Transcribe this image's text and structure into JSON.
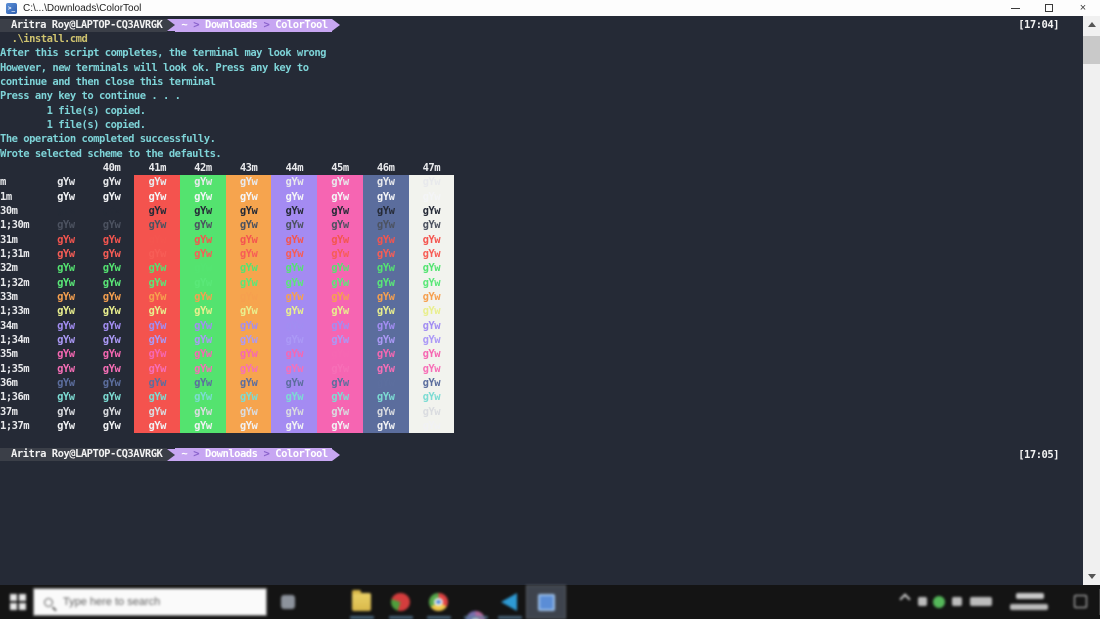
{
  "window": {
    "title": "C:\\...\\Downloads\\ColorTool",
    "controls": {
      "minimize": "minimize",
      "maximize": "maximize",
      "close": "×"
    }
  },
  "terminal": {
    "background": "#252a36",
    "path_separator": ">",
    "prompt_top": {
      "user": "Aritra Roy@LAPTOP-CQ3AVRGK",
      "segments": [
        "~",
        "Downloads",
        "ColorTool"
      ],
      "time": "[17:04]"
    },
    "prompt_bottom": {
      "user": "Aritra Roy@LAPTOP-CQ3AVRGK",
      "segments": [
        "~",
        "Downloads",
        "ColorTool"
      ],
      "time": "[17:05]"
    },
    "lines": [
      {
        "text": "  .\\install.cmd",
        "color": "#cfc36f"
      },
      {
        "text": "After this script completes, the terminal may look wrong",
        "color": "#7ed4d8"
      },
      {
        "text": "However, new terminals will look ok. Press any key to",
        "color": "#7ed4d8"
      },
      {
        "text": "continue and then close this terminal",
        "color": "#7ed4d8"
      },
      {
        "text": "Press any key to continue . . .",
        "color": "#7ed4d8"
      },
      {
        "text": "        1 file(s) copied.",
        "color": "#7ed4d8"
      },
      {
        "text": "        1 file(s) copied.",
        "color": "#7ed4d8"
      },
      {
        "text": "The operation completed successfully.",
        "color": "#7ed4d8"
      },
      {
        "text": "Wrote selected scheme to the defaults.",
        "color": "#7ed4d8"
      }
    ],
    "color_table": {
      "cell_text": "gYw",
      "columns": [
        {
          "label": "",
          "bg": null
        },
        {
          "label": "40m",
          "bg": null
        },
        {
          "label": "41m",
          "bg": "#f4534e"
        },
        {
          "label": "42m",
          "bg": "#54e36f"
        },
        {
          "label": "43m",
          "bg": "#f6a44e"
        },
        {
          "label": "44m",
          "bg": "#a48bf2"
        },
        {
          "label": "45m",
          "bg": "#f665b2"
        },
        {
          "label": "46m",
          "bg": "#5b6d9d"
        },
        {
          "label": "47m",
          "bg": "#f2f3ee"
        }
      ],
      "rows": [
        {
          "label": "m",
          "fg": "#e8e9ec"
        },
        {
          "label": "1m",
          "fg": "#f4f5f7"
        },
        {
          "label": "30m",
          "fg": "#252a36"
        },
        {
          "label": "1;30m",
          "fg": "#4c5260"
        },
        {
          "label": "31m",
          "fg": "#f4554f"
        },
        {
          "label": "1;31m",
          "fg": "#f75d56"
        },
        {
          "label": "32m",
          "fg": "#54e471"
        },
        {
          "label": "1;32m",
          "fg": "#5ae878"
        },
        {
          "label": "33m",
          "fg": "#f6a04f"
        },
        {
          "label": "1;33m",
          "fg": "#e9ef8e"
        },
        {
          "label": "34m",
          "fg": "#a28df2"
        },
        {
          "label": "1;34m",
          "fg": "#ab99f6"
        },
        {
          "label": "35m",
          "fg": "#f667b2"
        },
        {
          "label": "1;35m",
          "fg": "#f76fb7"
        },
        {
          "label": "36m",
          "fg": "#5c6e9e"
        },
        {
          "label": "1;36m",
          "fg": "#7cdcd3"
        },
        {
          "label": "37m",
          "fg": "#dadce0"
        },
        {
          "label": "1;37m",
          "fg": "#f1f2f4"
        }
      ]
    }
  },
  "taskbar": {
    "search_placeholder": "Type here to search",
    "icons": [
      "windows-start-icon",
      "search-icon",
      "task-view-icon",
      "folder-icon",
      "red-green-app-icon",
      "chrome-icon",
      "browser-app-icon",
      "vscode-icon",
      "colortool-console-icon",
      "tray-expand-icon",
      "tray-app-icon",
      "tray-green-status-icon",
      "volume-icon",
      "network-battery-icons",
      "clock",
      "action-center-icon"
    ]
  }
}
